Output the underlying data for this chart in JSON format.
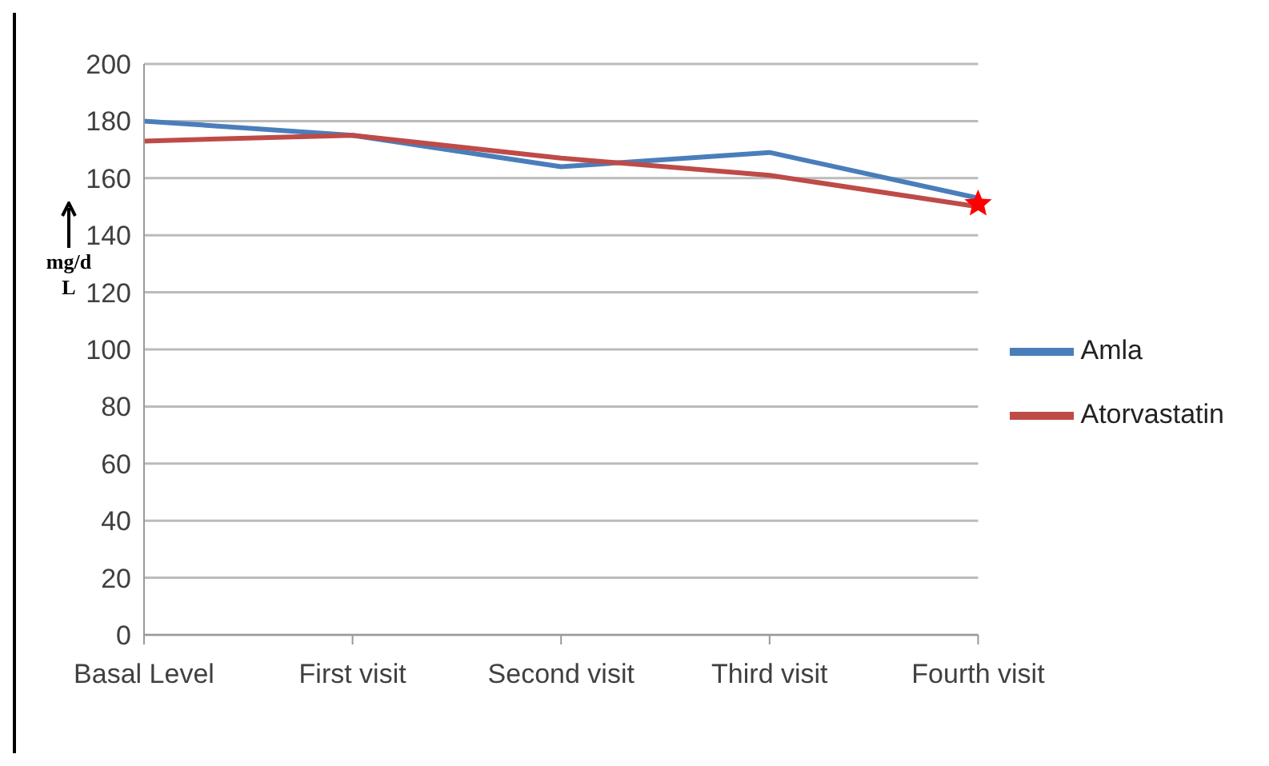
{
  "chart_data": {
    "type": "line",
    "ylabel": "mg/dL",
    "categories": [
      "Basal Level",
      "First visit",
      "Second visit",
      "Third visit",
      "Fourth visit"
    ],
    "series": [
      {
        "name": "Amla",
        "color": "#4a7ebb",
        "values": [
          180,
          175,
          164,
          169,
          153
        ]
      },
      {
        "name": "Atorvastatin",
        "color": "#be4b48",
        "values": [
          173,
          175,
          167,
          161,
          150
        ]
      },
      {
        "type": "scatter",
        "color": "#ff0000",
        "marker": "star",
        "values": [
          null,
          null,
          null,
          null,
          151
        ]
      }
    ],
    "ylim": [
      0,
      200
    ],
    "yticks": [
      0,
      20,
      40,
      60,
      80,
      100,
      120,
      140,
      160,
      180,
      200
    ],
    "grid": "y",
    "legend": "right",
    "marker": "none"
  }
}
